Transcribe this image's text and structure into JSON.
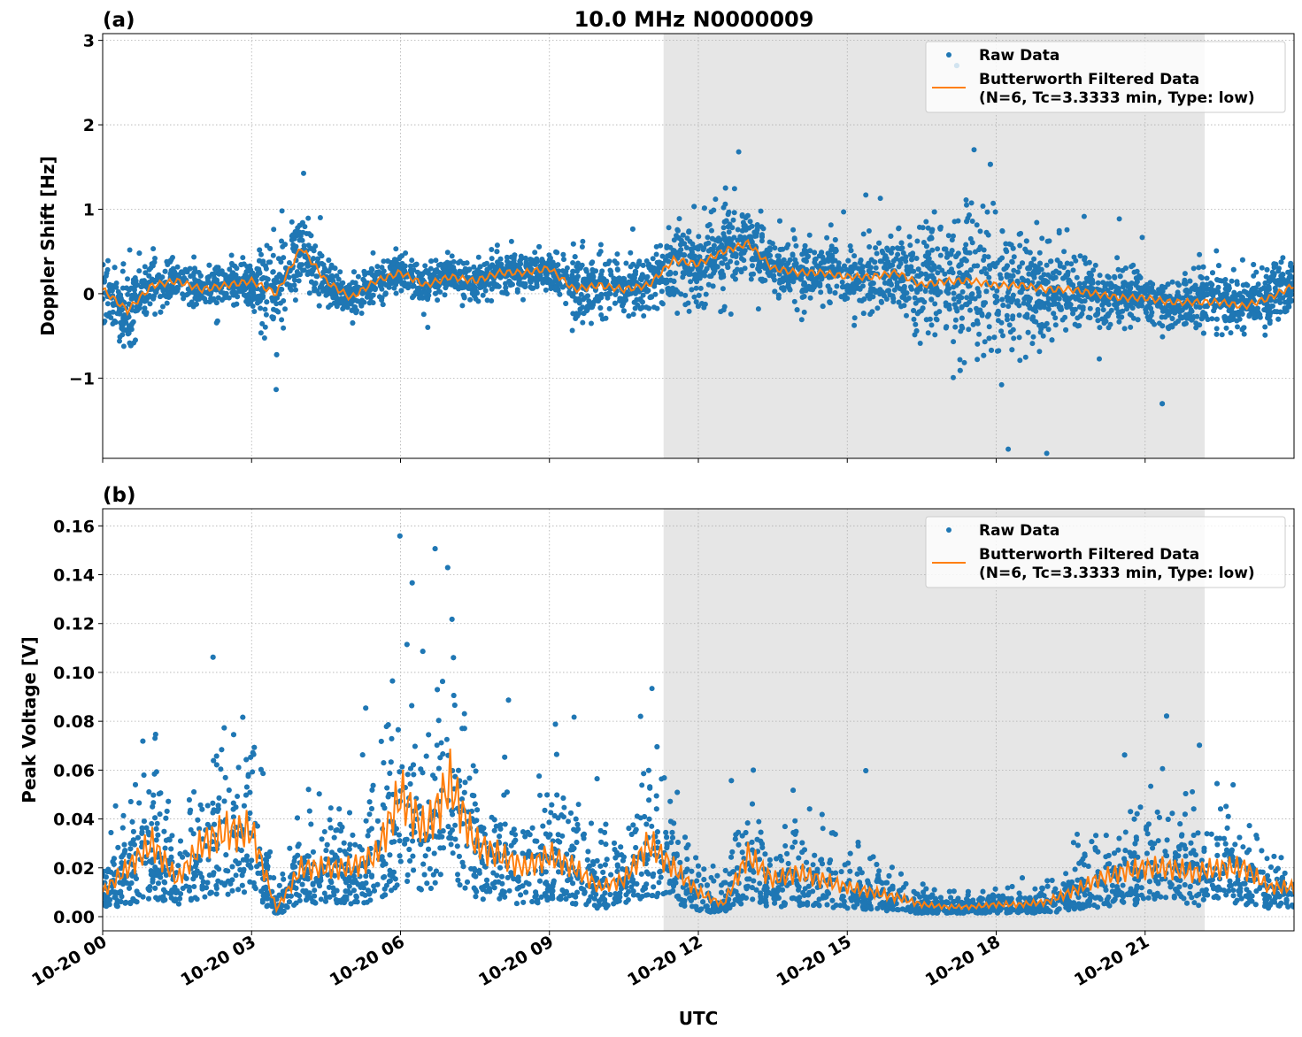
{
  "chart_data": {
    "type": "scatter",
    "title": "10.0 MHz N0000009",
    "xlabel": "UTC",
    "x_unit": "hours since 10-20 00",
    "xlim": [
      0,
      24
    ],
    "x_ticks": [
      0,
      3,
      6,
      9,
      12,
      15,
      18,
      21
    ],
    "x_tick_labels": [
      "10-20 00",
      "10-20 03",
      "10-20 06",
      "10-20 09",
      "10-20 12",
      "10-20 15",
      "10-20 18",
      "10-20 21"
    ],
    "shaded_interval": [
      11.3,
      22.2
    ],
    "grid": true,
    "legend": {
      "placement": "top-right",
      "raw_label": "Raw Data",
      "filtered_label_1": "Butterworth Filtered Data",
      "filtered_label_2": "(N=6, Tc=3.3333 min, Type: low)"
    },
    "colors": {
      "raw": "#1f77b4",
      "filtered": "#ff7f0e",
      "shade": "#e6e6e6"
    },
    "panels": [
      {
        "label": "(a)",
        "ylabel": "Doppler Shift [Hz]",
        "ylim": [
          -1.95,
          3.08
        ],
        "y_ticks": [
          -1,
          0,
          1,
          2,
          3
        ],
        "y_tick_labels": [
          "−1",
          "0",
          "1",
          "2",
          "3"
        ],
        "x_step": 0.5,
        "filtered": [
          0.05,
          -0.2,
          0.1,
          0.15,
          0.05,
          0.1,
          0.15,
          0.0,
          0.55,
          0.15,
          -0.05,
          0.15,
          0.25,
          0.1,
          0.2,
          0.15,
          0.25,
          0.25,
          0.3,
          0.05,
          0.1,
          0.05,
          0.1,
          0.4,
          0.35,
          0.5,
          0.6,
          0.3,
          0.25,
          0.25,
          0.2,
          0.2,
          0.25,
          0.1,
          0.15,
          0.15,
          0.1,
          0.1,
          0.05,
          0.05,
          0.0,
          -0.05,
          -0.05,
          -0.1,
          -0.1,
          -0.1,
          -0.15,
          -0.05,
          0.1
        ],
        "raw_spread": [
          0.35,
          0.4,
          0.25,
          0.2,
          0.2,
          0.2,
          0.25,
          0.6,
          0.4,
          0.25,
          0.2,
          0.2,
          0.2,
          0.2,
          0.2,
          0.2,
          0.22,
          0.2,
          0.2,
          0.3,
          0.3,
          0.3,
          0.3,
          0.4,
          0.45,
          0.5,
          0.4,
          0.3,
          0.3,
          0.3,
          0.3,
          0.35,
          0.4,
          0.55,
          0.7,
          0.75,
          0.7,
          0.6,
          0.55,
          0.45,
          0.35,
          0.3,
          0.25,
          0.25,
          0.3,
          0.3,
          0.3,
          0.35,
          0.3
        ]
      },
      {
        "label": "(b)",
        "ylabel": "Peak Voltage [V]",
        "ylim": [
          -0.0058,
          0.167
        ],
        "y_ticks": [
          0.0,
          0.02,
          0.04,
          0.06,
          0.08,
          0.1,
          0.12,
          0.14,
          0.16
        ],
        "y_tick_labels": [
          "0.00",
          "0.02",
          "0.04",
          "0.06",
          "0.08",
          "0.10",
          "0.12",
          "0.14",
          "0.16"
        ],
        "x_step": 0.5,
        "filtered": [
          0.01,
          0.02,
          0.03,
          0.015,
          0.03,
          0.035,
          0.035,
          0.003,
          0.02,
          0.02,
          0.02,
          0.025,
          0.05,
          0.035,
          0.055,
          0.03,
          0.025,
          0.02,
          0.025,
          0.02,
          0.012,
          0.015,
          0.03,
          0.02,
          0.01,
          0.005,
          0.025,
          0.015,
          0.018,
          0.015,
          0.012,
          0.01,
          0.008,
          0.005,
          0.004,
          0.004,
          0.005,
          0.005,
          0.006,
          0.01,
          0.015,
          0.018,
          0.02,
          0.02,
          0.018,
          0.02,
          0.02,
          0.012,
          0.012
        ]
      }
    ]
  }
}
